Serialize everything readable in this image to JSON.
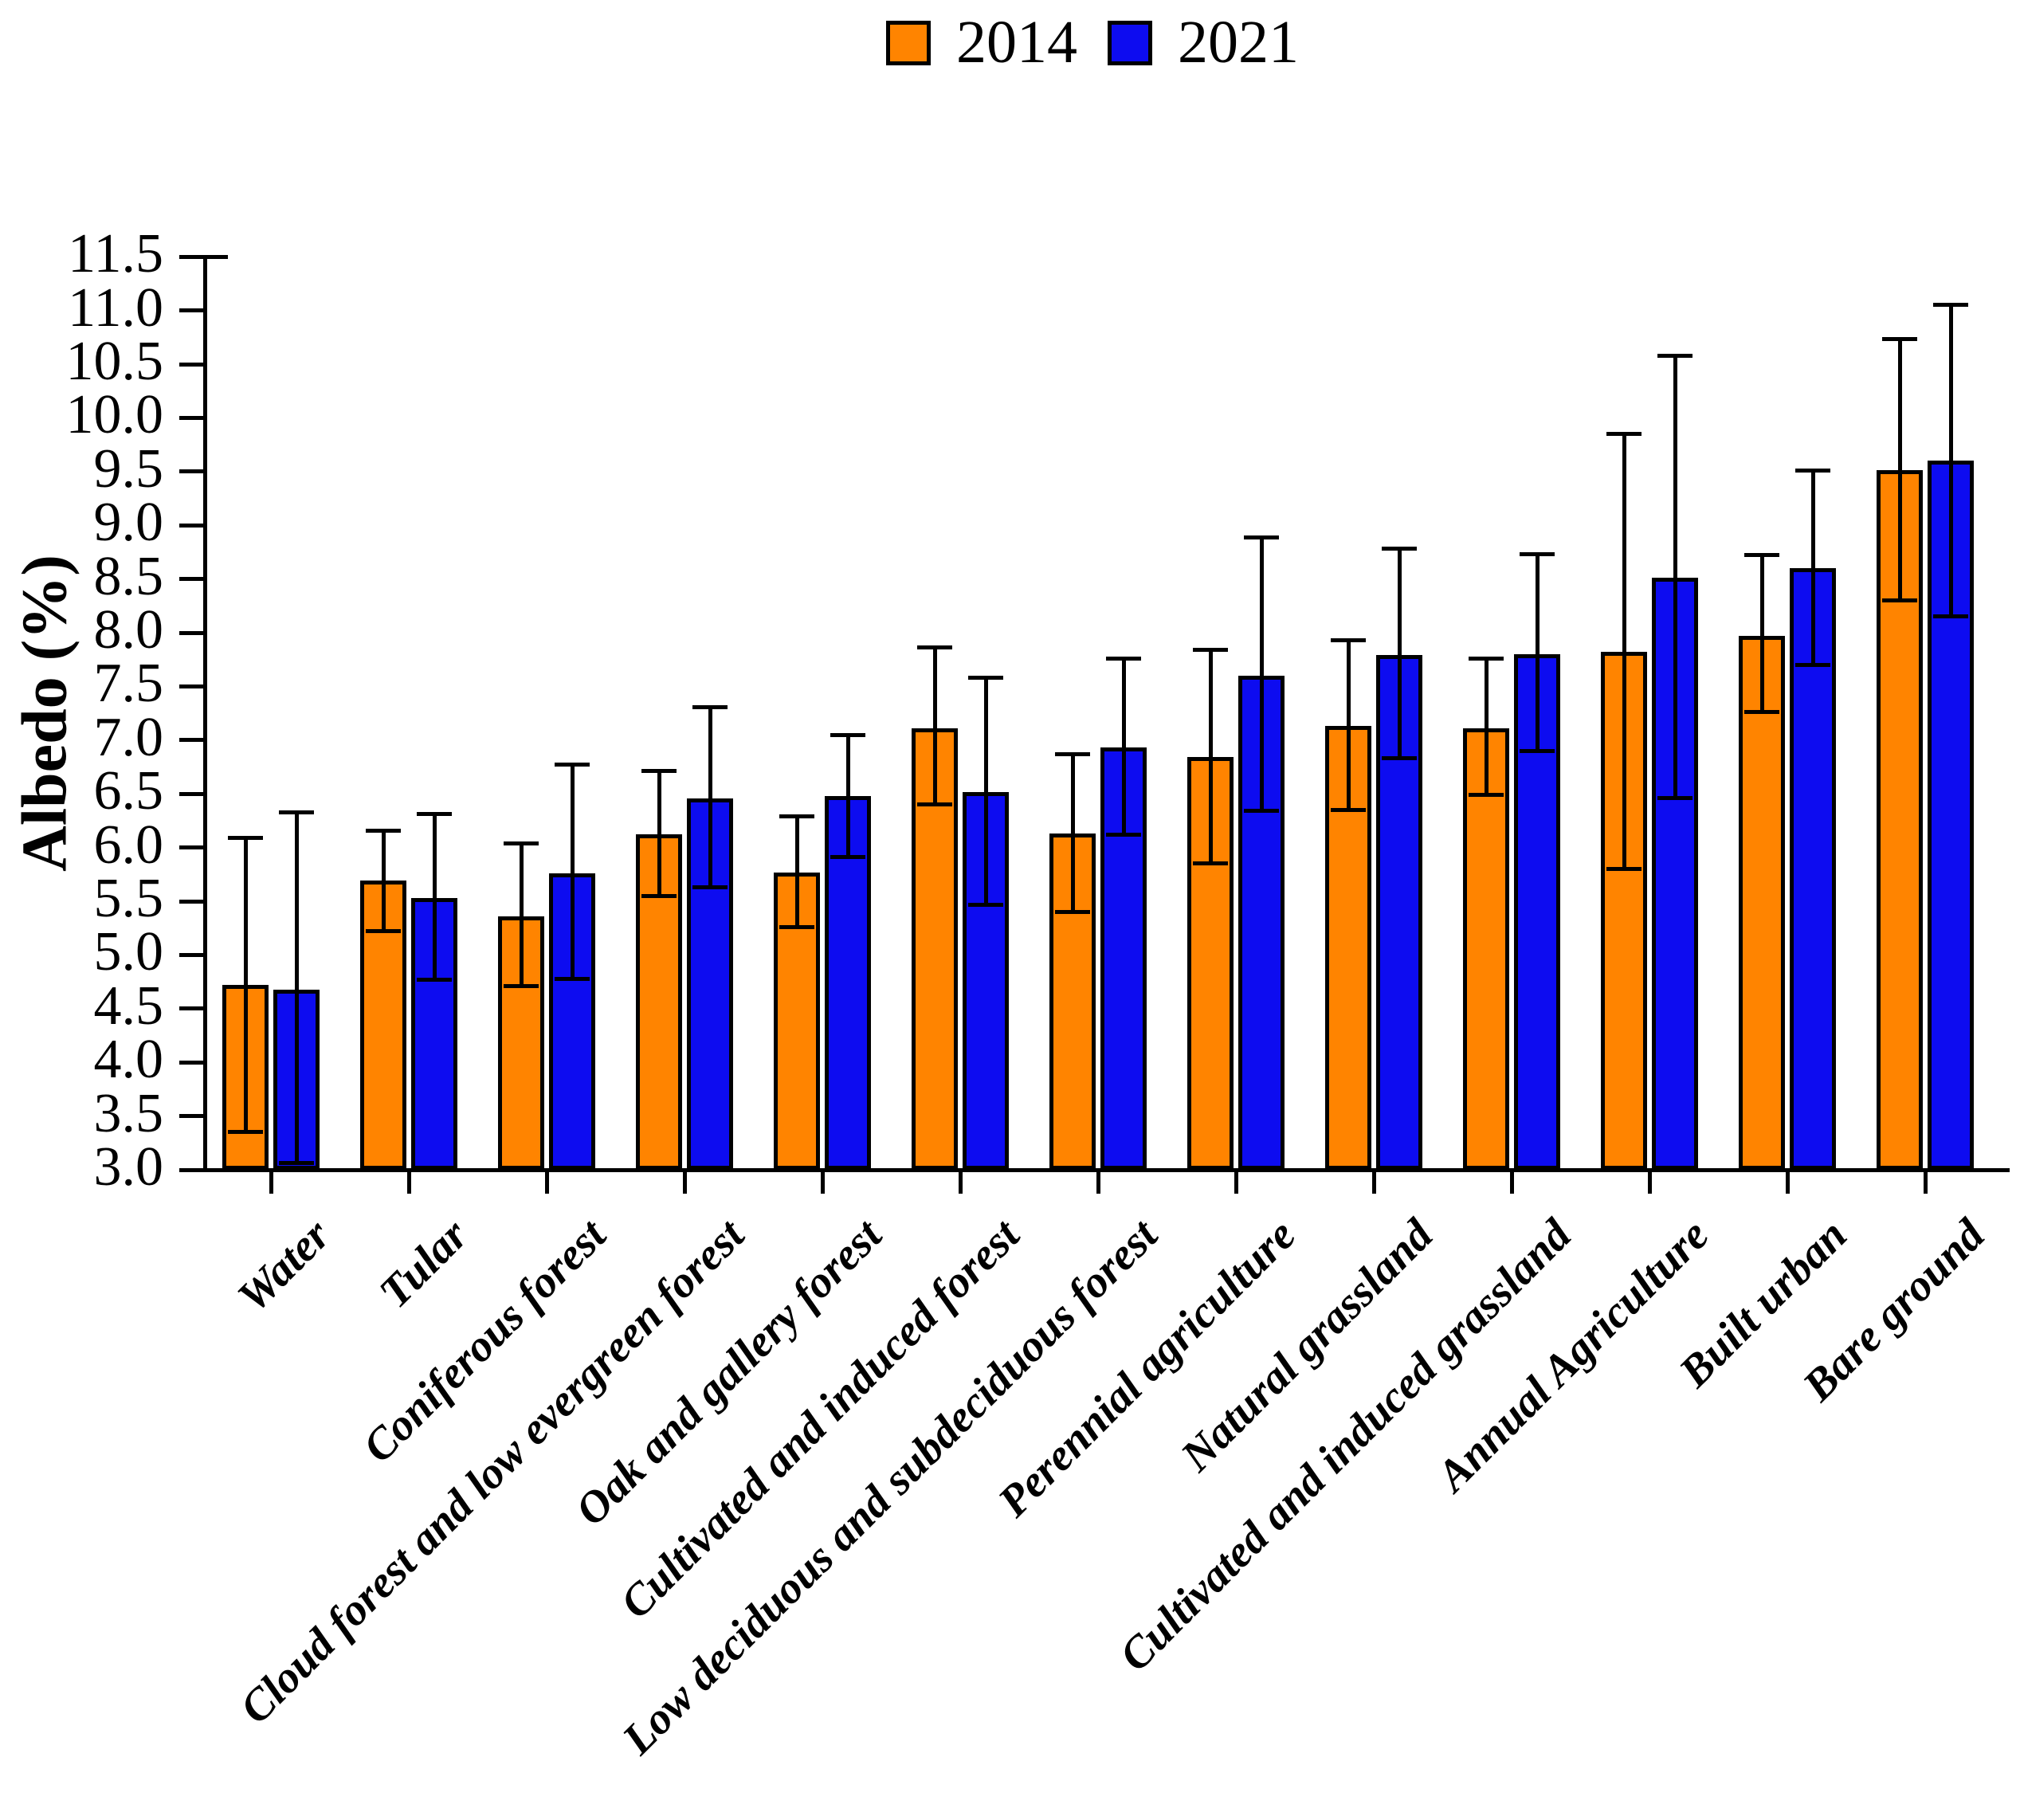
{
  "chart_data": {
    "type": "bar",
    "title": "",
    "xlabel": "",
    "ylabel": "Albedo (%)",
    "ylim": [
      3.0,
      11.5
    ],
    "ytick_step": 0.5,
    "yticks": [
      3.0,
      3.5,
      4.0,
      4.5,
      5.0,
      5.5,
      6.0,
      6.5,
      7.0,
      7.5,
      8.0,
      8.5,
      9.0,
      9.5,
      10.0,
      10.5,
      11.0,
      11.5
    ],
    "grid": false,
    "legend_position": "top-center",
    "error_bars": true,
    "categories": [
      "Water",
      "Tular",
      "Coniferous forest",
      "Cloud forest and low evergreen forest",
      "Oak and gallery forest",
      "Cultivated and induced forest",
      "Low deciduous and subdeciduous forest",
      "Perennial agriculture",
      "Natural grassland",
      "Cultivated and induced grassland",
      "Annual Agriculture",
      "Built urban",
      "Bare ground"
    ],
    "series": [
      {
        "name": "2014",
        "color": "#FF8400",
        "values": [
          4.72,
          5.69,
          5.36,
          6.12,
          5.77,
          7.11,
          6.13,
          6.84,
          7.13,
          7.11,
          7.82,
          7.97,
          9.51
        ],
        "err_low": [
          3.35,
          5.22,
          4.71,
          5.55,
          5.26,
          6.4,
          5.4,
          5.85,
          6.35,
          6.49,
          5.8,
          7.26,
          8.3
        ],
        "err_high": [
          6.09,
          6.16,
          6.04,
          6.71,
          6.29,
          7.86,
          6.87,
          7.84,
          7.93,
          7.76,
          9.85,
          8.72,
          10.73
        ]
      },
      {
        "name": "2021",
        "color": "#0D0CF0",
        "values": [
          4.68,
          5.53,
          5.76,
          6.46,
          6.48,
          6.52,
          6.93,
          7.6,
          7.79,
          7.8,
          8.51,
          8.6,
          9.6
        ],
        "err_low": [
          3.06,
          4.77,
          4.78,
          5.63,
          5.91,
          5.47,
          6.12,
          6.34,
          6.83,
          6.9,
          6.46,
          7.7,
          8.15
        ],
        "err_high": [
          6.33,
          6.31,
          6.77,
          7.31,
          7.05,
          7.58,
          7.76,
          8.89,
          8.78,
          8.73,
          10.58,
          9.51,
          11.05
        ]
      }
    ]
  }
}
